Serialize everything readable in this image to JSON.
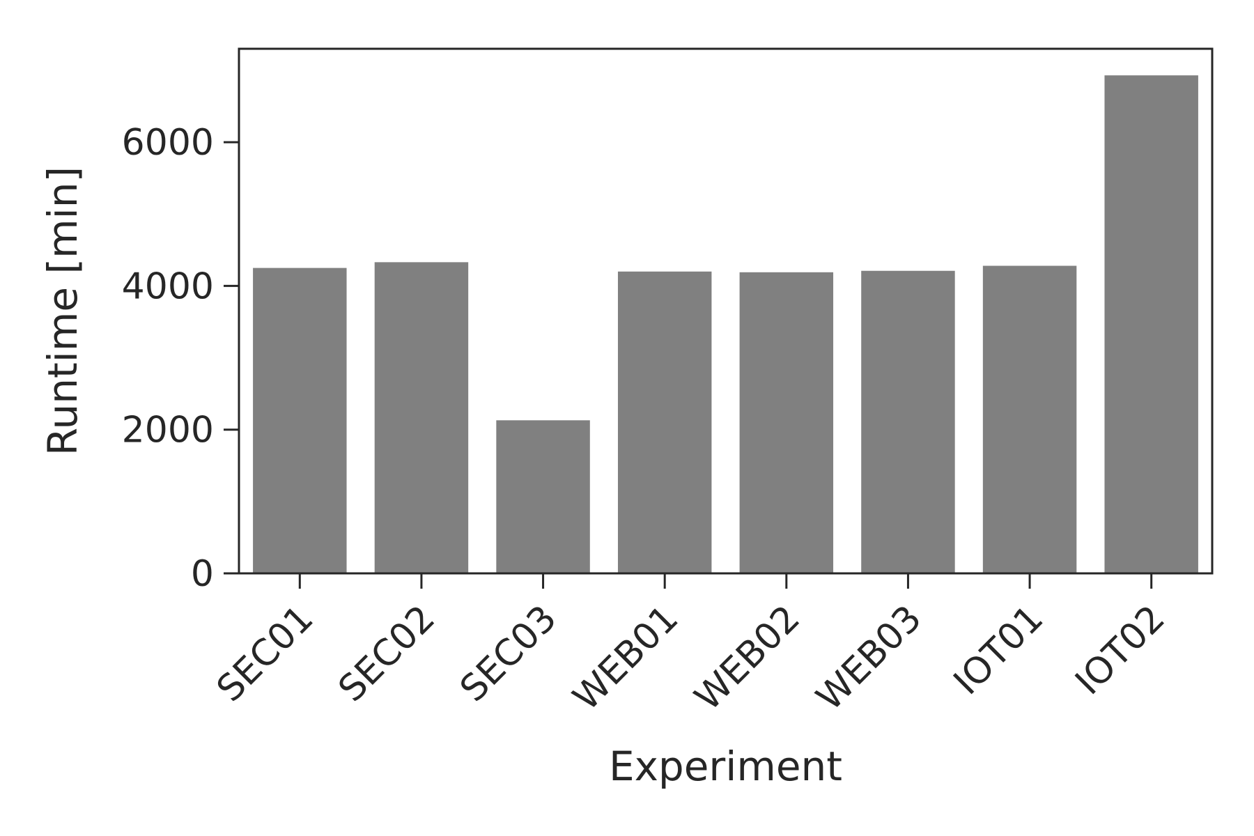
{
  "chart_data": {
    "type": "bar",
    "title": "",
    "xlabel": "Experiment",
    "ylabel": "Runtime [min]",
    "categories": [
      "SEC01",
      "SEC02",
      "SEC03",
      "WEB01",
      "WEB02",
      "WEB03",
      "IOT01",
      "IOT02"
    ],
    "values": [
      4250,
      4330,
      2130,
      4200,
      4190,
      4210,
      4280,
      6930
    ],
    "ylim": [
      0,
      7300
    ],
    "yticks": [
      0,
      2000,
      4000,
      6000
    ],
    "grid": false,
    "legend": "none",
    "bar_color": "#808080",
    "axis_color": "#262626"
  }
}
